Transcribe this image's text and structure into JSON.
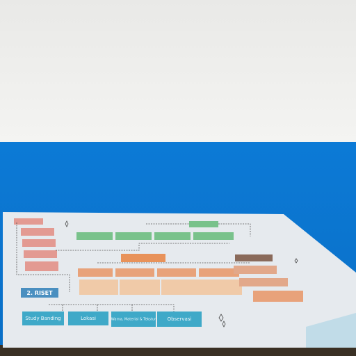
{
  "poster": {
    "section": "2. RISET",
    "boxes": [
      "Study Banding",
      "Lokasi",
      "Warna, Material & Tekstur",
      "Observasi"
    ]
  }
}
